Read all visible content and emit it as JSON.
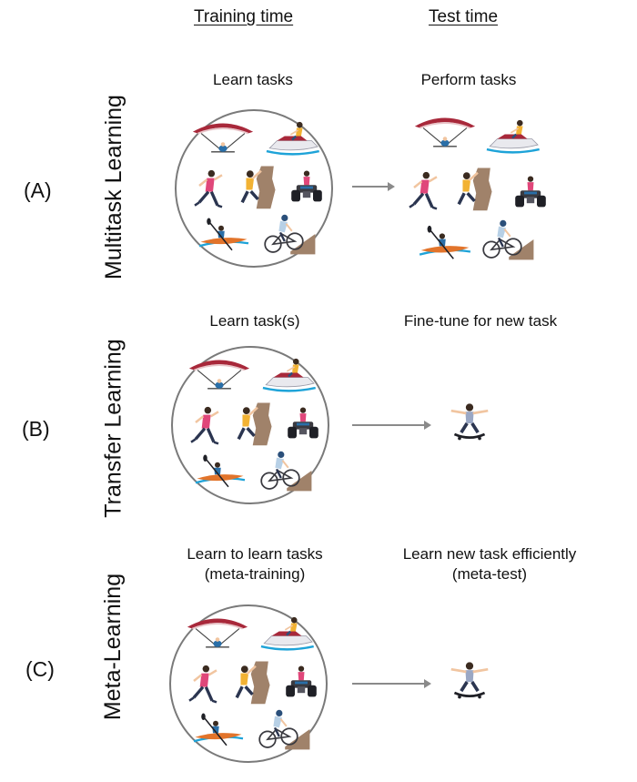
{
  "headers": {
    "training": "Training time",
    "test": "Test time"
  },
  "rows": [
    {
      "id": "A",
      "label": "(A)",
      "side": "Multitask Learning",
      "train_caption": [
        "Learn tasks"
      ],
      "test_caption": [
        "Perform tasks"
      ]
    },
    {
      "id": "B",
      "label": "(B)",
      "side": "Transfer Learning",
      "train_caption": [
        "Learn task(s)"
      ],
      "test_caption": [
        "Fine-tune for new task"
      ]
    },
    {
      "id": "C",
      "label": "(C)",
      "side": "Meta-Learning",
      "train_caption": [
        "Learn to learn tasks",
        "(meta-training)"
      ],
      "test_caption": [
        "Learn new task efficiently",
        "(meta-test)"
      ]
    }
  ],
  "task_icons": [
    "hang-glider-icon",
    "jet-ski-icon",
    "runner-icon",
    "rock-climber-icon",
    "quad-bike-icon",
    "kayaker-icon",
    "cyclist-icon"
  ],
  "new_task_icon": "skateboarder-icon",
  "colors": {
    "circle_border": "#7a7a7a",
    "arrow": "#8a8a8a",
    "wing": "#a8283a",
    "water": "#1ea3d8",
    "kayak": "#e2742b",
    "rock": "#a0826a"
  }
}
